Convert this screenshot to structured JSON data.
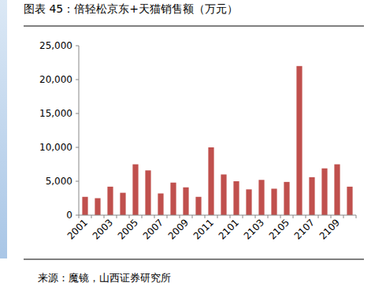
{
  "chart_data": {
    "type": "bar",
    "title": "图表 45：倍轻松京东+天猫销售额（万元）",
    "source": "来源：魔镜，山西证券研究所",
    "categories": [
      "2001",
      null,
      "2003",
      null,
      "2005",
      null,
      "2007",
      null,
      "2009",
      null,
      "2011",
      null,
      "2101",
      null,
      "2103",
      null,
      "2105",
      null,
      "2107",
      null,
      "2109",
      null
    ],
    "values": [
      2700,
      2500,
      4200,
      3300,
      7500,
      6600,
      3200,
      4800,
      4100,
      2700,
      10000,
      6000,
      5000,
      3800,
      5200,
      3900,
      4900,
      22000,
      5600,
      6900,
      7500,
      4200
    ],
    "color": "#c0504d",
    "ylim": [
      0,
      25000
    ],
    "yticks": [
      0,
      {
        "value": 5000,
        "label": "5,000"
      },
      {
        "value": 10000,
        "label": "10,000"
      },
      {
        "value": 15000,
        "label": "15,000"
      },
      {
        "value": 20000,
        "label": "20,000"
      },
      {
        "value": 25000,
        "label": "25,000"
      }
    ],
    "grid": false
  }
}
